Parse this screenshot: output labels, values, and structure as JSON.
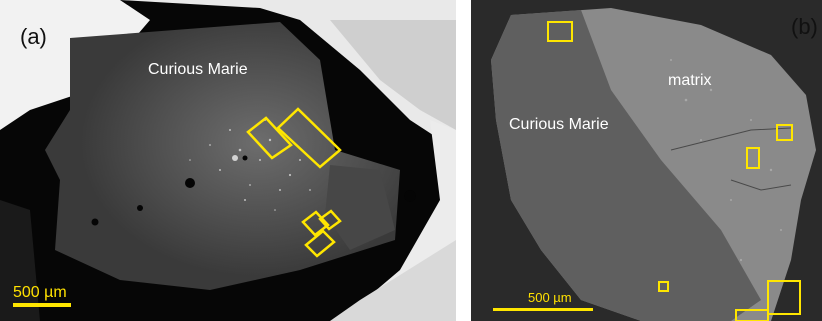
{
  "panel_a": {
    "label": "(a)",
    "sample_label": "Curious Marie",
    "scale_bar": "500 µm",
    "highlight_color": "#ffe600"
  },
  "panel_b": {
    "label": "(b)",
    "sample_label": "Curious Marie",
    "matrix_label": "matrix",
    "scale_bar": "500 µm",
    "highlight_color": "#ffe600"
  }
}
